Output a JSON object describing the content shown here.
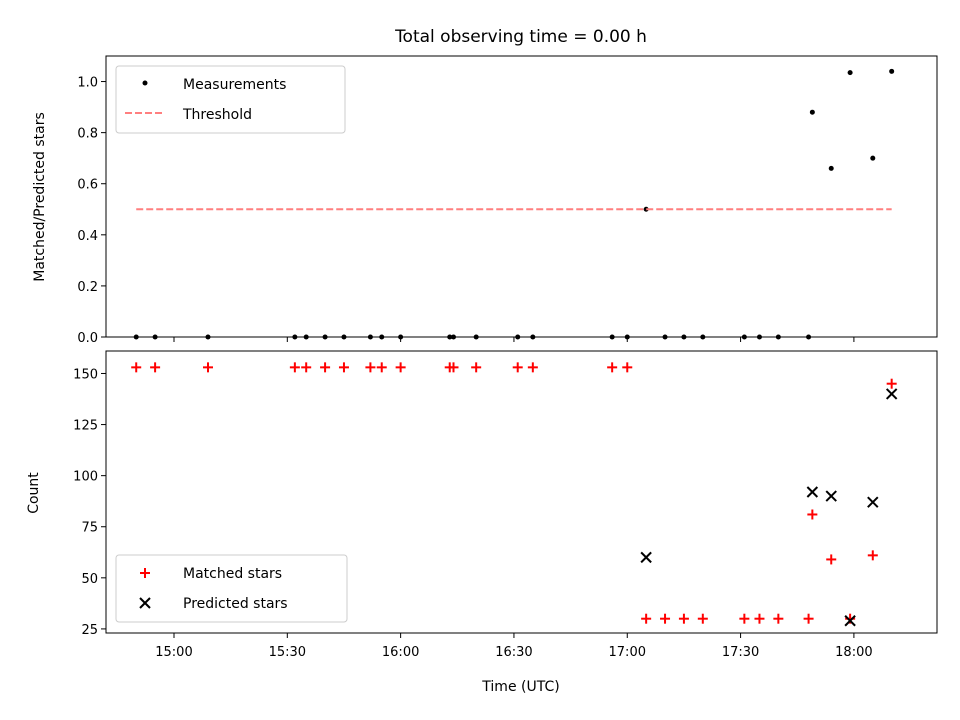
{
  "chart_data": [
    {
      "type": "scatter",
      "title": "Total observing time = 0.00 h",
      "xlabel": "",
      "ylabel": "Matched/Predicted stars",
      "xlim": [
        "14:42",
        "18:22"
      ],
      "ylim": [
        0.0,
        1.1
      ],
      "yticks": [
        0.0,
        0.2,
        0.4,
        0.6,
        0.8,
        1.0
      ],
      "ytick_labels": [
        "0.0",
        "0.2",
        "0.4",
        "0.6",
        "0.8",
        "1.0"
      ],
      "xticks": [
        "15:00",
        "15:30",
        "16:00",
        "16:30",
        "17:00",
        "17:30",
        "18:00"
      ],
      "legend_position": "upper-left",
      "series": [
        {
          "name": "Measurements",
          "kind": "dots",
          "color": "#000000",
          "points": [
            [
              "14:50",
              0
            ],
            [
              "14:55",
              0
            ],
            [
              "15:09",
              0
            ],
            [
              "15:32",
              0
            ],
            [
              "15:35",
              0
            ],
            [
              "15:40",
              0
            ],
            [
              "15:45",
              0
            ],
            [
              "15:52",
              0
            ],
            [
              "15:55",
              0
            ],
            [
              "16:00",
              0
            ],
            [
              "16:13",
              0
            ],
            [
              "16:14",
              0
            ],
            [
              "16:20",
              0
            ],
            [
              "16:31",
              0
            ],
            [
              "16:35",
              0
            ],
            [
              "16:56",
              0
            ],
            [
              "17:00",
              0
            ],
            [
              "17:05",
              0.5
            ],
            [
              "17:10",
              0
            ],
            [
              "17:15",
              0
            ],
            [
              "17:20",
              0
            ],
            [
              "17:31",
              0
            ],
            [
              "17:35",
              0
            ],
            [
              "17:40",
              0
            ],
            [
              "17:48",
              0
            ],
            [
              "17:49",
              0.88
            ],
            [
              "17:54",
              0.66
            ],
            [
              "17:59",
              1.035
            ],
            [
              "18:05",
              0.7
            ],
            [
              "18:10",
              1.04
            ]
          ]
        },
        {
          "name": "Threshold",
          "kind": "dashed-line",
          "color": "#ff7f7f",
          "points": [
            [
              "14:50",
              0.5
            ],
            [
              "18:10",
              0.5
            ]
          ]
        }
      ]
    },
    {
      "type": "scatter",
      "title": "",
      "xlabel": "Time (UTC)",
      "ylabel": "Count",
      "xlim": [
        "14:42",
        "18:22"
      ],
      "ylim": [
        23,
        161
      ],
      "yticks": [
        25,
        50,
        75,
        100,
        125,
        150
      ],
      "ytick_labels": [
        "25",
        "50",
        "75",
        "100",
        "125",
        "150"
      ],
      "xticks": [
        "15:00",
        "15:30",
        "16:00",
        "16:30",
        "17:00",
        "17:30",
        "18:00"
      ],
      "legend_position": "lower-left",
      "series": [
        {
          "name": "Matched stars",
          "kind": "plus",
          "color": "#ff0000",
          "points": [
            [
              "14:50",
              153
            ],
            [
              "14:55",
              153
            ],
            [
              "15:09",
              153
            ],
            [
              "15:32",
              153
            ],
            [
              "15:35",
              153
            ],
            [
              "15:40",
              153
            ],
            [
              "15:45",
              153
            ],
            [
              "15:52",
              153
            ],
            [
              "15:55",
              153
            ],
            [
              "16:00",
              153
            ],
            [
              "16:13",
              153
            ],
            [
              "16:14",
              153
            ],
            [
              "16:20",
              153
            ],
            [
              "16:31",
              153
            ],
            [
              "16:35",
              153
            ],
            [
              "16:56",
              153
            ],
            [
              "17:00",
              153
            ],
            [
              "17:05",
              30
            ],
            [
              "17:10",
              30
            ],
            [
              "17:15",
              30
            ],
            [
              "17:20",
              30
            ],
            [
              "17:31",
              30
            ],
            [
              "17:35",
              30
            ],
            [
              "17:40",
              30
            ],
            [
              "17:48",
              30
            ],
            [
              "17:49",
              81
            ],
            [
              "17:54",
              59
            ],
            [
              "17:59",
              30
            ],
            [
              "18:05",
              61
            ],
            [
              "18:10",
              145
            ]
          ]
        },
        {
          "name": "Predicted stars",
          "kind": "x",
          "color": "#000000",
          "points": [
            [
              "17:05",
              60
            ],
            [
              "17:49",
              92
            ],
            [
              "17:54",
              90
            ],
            [
              "17:59",
              29
            ],
            [
              "18:05",
              87
            ],
            [
              "18:10",
              140
            ]
          ]
        }
      ]
    }
  ]
}
